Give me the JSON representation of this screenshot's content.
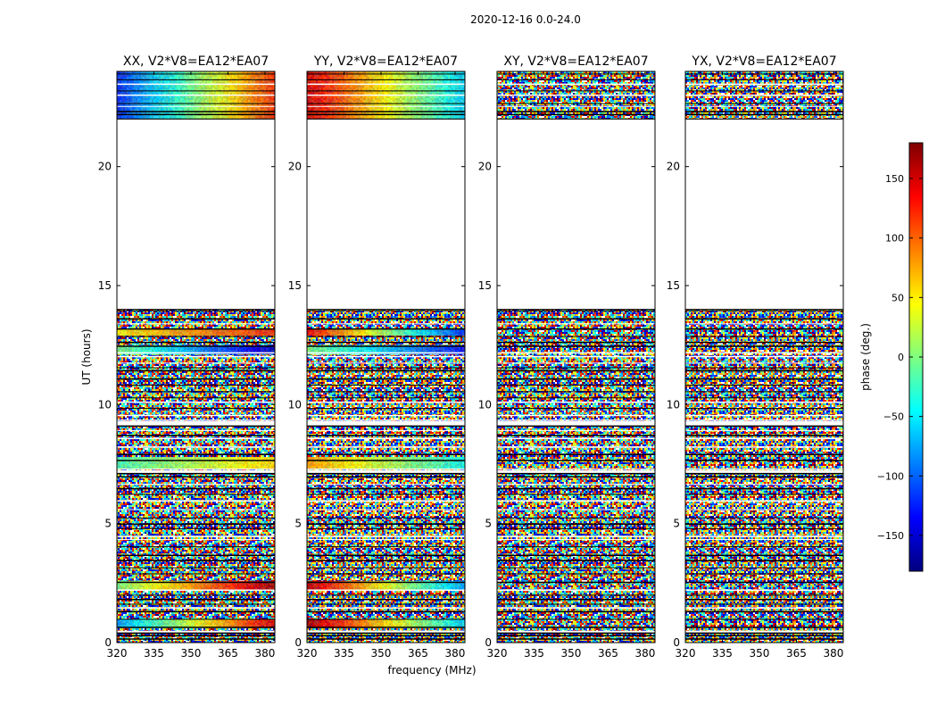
{
  "figure": {
    "suptitle": "2020-12-16 0.0-24.0"
  },
  "chart_data": {
    "type": "heatmap",
    "shared": {
      "xlabel": "frequency (MHz)",
      "ylabel": "UT (hours)",
      "xlim": [
        320,
        384
      ],
      "ylim": [
        0,
        24
      ],
      "xticks": [
        320,
        335,
        350,
        365,
        380
      ],
      "yticks": [
        0,
        5,
        10,
        15,
        20
      ],
      "empty_time_ranges_hours": [
        [
          14.0,
          22.0
        ]
      ],
      "flagged_time_bands_hours": [
        [
          7.1,
          7.25
        ],
        [
          9.1,
          9.3
        ],
        [
          0.4,
          0.5
        ]
      ]
    },
    "panels": [
      {
        "title": "XX, V2*V8=EA12*EA07",
        "coherent_bands": [
          {
            "t": [
              22.0,
              24.0
            ],
            "phase_low_freq": -120,
            "phase_high_freq": 120,
            "slope": "phase increases with frequency"
          },
          {
            "t": [
              12.1,
              12.5
            ],
            "phase_low_freq": 0,
            "phase_high_freq": -160
          },
          {
            "t": [
              12.9,
              13.2
            ],
            "phase_low_freq": 50,
            "phase_high_freq": 120
          },
          {
            "t": [
              2.2,
              2.6
            ],
            "phase_low_freq": 0,
            "phase_high_freq": 170
          },
          {
            "t": [
              0.6,
              1.0
            ],
            "phase_low_freq": -80,
            "phase_high_freq": 150
          },
          {
            "t": [
              7.3,
              7.8
            ],
            "phase_low_freq": -20,
            "phase_high_freq": 60
          }
        ]
      },
      {
        "title": "YY, V2*V8=EA12*EA07",
        "coherent_bands": [
          {
            "t": [
              22.0,
              24.0
            ],
            "phase_low_freq": 150,
            "phase_high_freq": -60,
            "slope": "phase decreases with frequency"
          },
          {
            "t": [
              12.1,
              12.5
            ],
            "phase_low_freq": 0,
            "phase_high_freq": -130
          },
          {
            "t": [
              12.9,
              13.2
            ],
            "phase_low_freq": 140,
            "phase_high_freq": -120
          },
          {
            "t": [
              2.2,
              2.6
            ],
            "phase_low_freq": 160,
            "phase_high_freq": -80
          },
          {
            "t": [
              0.6,
              1.0
            ],
            "phase_low_freq": 170,
            "phase_high_freq": -60
          },
          {
            "t": [
              7.3,
              7.8
            ],
            "phase_low_freq": 80,
            "phase_high_freq": -40
          }
        ]
      },
      {
        "title": "XY, V2*V8=EA12*EA07",
        "coherent_bands": []
      },
      {
        "title": "YX, V2*V8=EA12*EA07",
        "coherent_bands": []
      }
    ],
    "colorbar": {
      "label": "phase (deg.)",
      "range": [
        -180,
        180
      ],
      "ticks": [
        -150,
        -100,
        -50,
        0,
        50,
        100,
        150
      ],
      "tick_labels": [
        "−150",
        "−100",
        "−50",
        "0",
        "50",
        "100",
        "150"
      ],
      "colormap": "jet",
      "colormap_stops": [
        "#00007f",
        "#0000ff",
        "#007fff",
        "#00ffff",
        "#7fff7f",
        "#ffff00",
        "#ff7f00",
        "#ff0000",
        "#7f0000"
      ]
    }
  }
}
